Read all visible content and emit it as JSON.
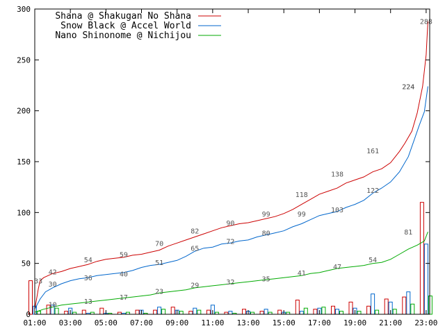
{
  "chart_data": {
    "type": "line",
    "title": "",
    "xlabel": "",
    "ylabel": "",
    "x_ticks": [
      "01:00",
      "03:00",
      "05:00",
      "07:00",
      "09:00",
      "11:00",
      "13:00",
      "15:00",
      "17:00",
      "19:00",
      "21:00",
      "23:00"
    ],
    "y_ticks": [
      0,
      50,
      100,
      150,
      200,
      250,
      300
    ],
    "xlim": [
      1,
      23.2
    ],
    "ylim": [
      0,
      300
    ],
    "grid": false,
    "legend_position": "top-left",
    "series": [
      {
        "name": "Shana @ Shakugan No Shana",
        "color": "#cc0000",
        "points": [
          [
            1.0,
            5
          ],
          [
            1.1,
            15
          ],
          [
            1.2,
            25
          ],
          [
            1.3,
            33
          ],
          [
            1.5,
            36
          ],
          [
            2.0,
            40
          ],
          [
            2.5,
            42
          ],
          [
            3.0,
            45
          ],
          [
            3.5,
            47
          ],
          [
            4.0,
            49
          ],
          [
            4.5,
            52
          ],
          [
            5.0,
            54
          ],
          [
            5.5,
            55
          ],
          [
            6.0,
            56
          ],
          [
            6.5,
            58
          ],
          [
            7.0,
            59
          ],
          [
            7.5,
            61
          ],
          [
            8.0,
            63
          ],
          [
            8.5,
            67
          ],
          [
            9.0,
            70
          ],
          [
            9.5,
            73
          ],
          [
            10.0,
            76
          ],
          [
            10.5,
            79
          ],
          [
            11.0,
            82
          ],
          [
            11.5,
            85
          ],
          [
            12.0,
            87
          ],
          [
            12.5,
            89
          ],
          [
            13.0,
            90
          ],
          [
            13.5,
            92
          ],
          [
            14.0,
            94
          ],
          [
            14.5,
            96
          ],
          [
            15.0,
            99
          ],
          [
            15.5,
            103
          ],
          [
            16.0,
            108
          ],
          [
            16.5,
            113
          ],
          [
            17.0,
            118
          ],
          [
            17.5,
            121
          ],
          [
            18.0,
            124
          ],
          [
            18.5,
            129
          ],
          [
            19.0,
            132
          ],
          [
            19.5,
            135
          ],
          [
            20.0,
            140
          ],
          [
            20.5,
            143
          ],
          [
            21.0,
            149
          ],
          [
            21.5,
            160
          ],
          [
            21.8,
            168
          ],
          [
            22.2,
            180
          ],
          [
            22.5,
            198
          ],
          [
            22.8,
            224
          ],
          [
            23.0,
            255
          ],
          [
            23.1,
            288
          ]
        ],
        "labels": [
          [
            1.2,
            33
          ],
          [
            2.0,
            42
          ],
          [
            4.0,
            54
          ],
          [
            6.0,
            59
          ],
          [
            8.0,
            70
          ],
          [
            10.0,
            82
          ],
          [
            12.0,
            90
          ],
          [
            14.0,
            99
          ],
          [
            16.0,
            118
          ],
          [
            18.0,
            138
          ],
          [
            20.0,
            161
          ],
          [
            22.0,
            224
          ],
          [
            23.0,
            288
          ]
        ]
      },
      {
        "name": "Snow Black @ Accel World",
        "color": "#0066cc",
        "points": [
          [
            1.0,
            5
          ],
          [
            1.3,
            15
          ],
          [
            1.6,
            22
          ],
          [
            2.0,
            26
          ],
          [
            2.5,
            30
          ],
          [
            3.0,
            33
          ],
          [
            3.5,
            35
          ],
          [
            4.0,
            36
          ],
          [
            4.5,
            38
          ],
          [
            5.0,
            39
          ],
          [
            5.5,
            40
          ],
          [
            6.0,
            41
          ],
          [
            6.5,
            43
          ],
          [
            7.0,
            46
          ],
          [
            7.5,
            48
          ],
          [
            8.0,
            49
          ],
          [
            8.5,
            51
          ],
          [
            9.0,
            53
          ],
          [
            9.5,
            57
          ],
          [
            10.0,
            62
          ],
          [
            10.5,
            65
          ],
          [
            11.0,
            66
          ],
          [
            11.5,
            69
          ],
          [
            12.0,
            70
          ],
          [
            12.5,
            72
          ],
          [
            13.0,
            73
          ],
          [
            13.5,
            76
          ],
          [
            14.0,
            78
          ],
          [
            14.5,
            80
          ],
          [
            15.0,
            82
          ],
          [
            15.5,
            86
          ],
          [
            16.0,
            89
          ],
          [
            16.5,
            93
          ],
          [
            17.0,
            97
          ],
          [
            17.5,
            99
          ],
          [
            18.0,
            101
          ],
          [
            18.5,
            105
          ],
          [
            19.0,
            108
          ],
          [
            19.5,
            112
          ],
          [
            20.0,
            119
          ],
          [
            20.5,
            124
          ],
          [
            21.0,
            130
          ],
          [
            21.5,
            140
          ],
          [
            22.0,
            155
          ],
          [
            22.3,
            170
          ],
          [
            22.6,
            185
          ],
          [
            22.9,
            199
          ],
          [
            23.1,
            224
          ]
        ],
        "labels": [
          [
            2.0,
            30
          ],
          [
            4.0,
            36
          ],
          [
            6.0,
            40
          ],
          [
            8.0,
            51
          ],
          [
            10.0,
            65
          ],
          [
            12.0,
            72
          ],
          [
            14.0,
            80
          ],
          [
            16.0,
            99
          ],
          [
            18.0,
            103
          ],
          [
            20.0,
            122
          ],
          [
            22.0,
            224
          ]
        ]
      },
      {
        "name": "Nano Shinonome @ Nichijou",
        "color": "#00aa00",
        "points": [
          [
            1.0,
            2
          ],
          [
            1.5,
            5
          ],
          [
            2.0,
            7
          ],
          [
            2.5,
            9
          ],
          [
            3.0,
            10
          ],
          [
            3.5,
            11
          ],
          [
            4.0,
            12
          ],
          [
            4.5,
            13
          ],
          [
            5.0,
            14
          ],
          [
            5.5,
            15
          ],
          [
            6.0,
            16
          ],
          [
            6.5,
            17
          ],
          [
            7.0,
            18
          ],
          [
            7.5,
            19
          ],
          [
            8.0,
            21
          ],
          [
            8.5,
            22
          ],
          [
            9.0,
            23
          ],
          [
            9.5,
            24
          ],
          [
            10.0,
            26
          ],
          [
            10.5,
            27
          ],
          [
            11.0,
            28
          ],
          [
            11.5,
            29
          ],
          [
            12.0,
            30
          ],
          [
            12.5,
            31
          ],
          [
            13.0,
            32
          ],
          [
            13.5,
            33
          ],
          [
            14.0,
            34
          ],
          [
            14.5,
            35
          ],
          [
            15.0,
            36
          ],
          [
            15.5,
            37
          ],
          [
            16.0,
            38
          ],
          [
            16.5,
            40
          ],
          [
            17.0,
            41
          ],
          [
            17.5,
            43
          ],
          [
            18.0,
            45
          ],
          [
            18.5,
            46
          ],
          [
            19.0,
            47
          ],
          [
            19.5,
            48
          ],
          [
            20.0,
            50
          ],
          [
            20.5,
            51
          ],
          [
            21.0,
            54
          ],
          [
            21.5,
            59
          ],
          [
            22.0,
            64
          ],
          [
            22.5,
            68
          ],
          [
            22.9,
            72
          ],
          [
            23.1,
            81
          ]
        ],
        "labels": [
          [
            2.0,
            10
          ],
          [
            4.0,
            13
          ],
          [
            6.0,
            17
          ],
          [
            8.0,
            23
          ],
          [
            10.0,
            29
          ],
          [
            12.0,
            32
          ],
          [
            14.0,
            35
          ],
          [
            16.0,
            41
          ],
          [
            18.0,
            47
          ],
          [
            20.0,
            54
          ],
          [
            22.0,
            81
          ]
        ]
      }
    ],
    "bars": [
      {
        "x": 1,
        "values": [
          33,
          8,
          3
        ]
      },
      {
        "x": 2,
        "values": [
          9,
          9,
          6
        ]
      },
      {
        "x": 3,
        "values": [
          3,
          6,
          2
        ]
      },
      {
        "x": 4,
        "values": [
          4,
          1,
          2
        ]
      },
      {
        "x": 5,
        "values": [
          6,
          1,
          1
        ]
      },
      {
        "x": 6,
        "values": [
          2,
          1,
          2
        ]
      },
      {
        "x": 7,
        "values": [
          4,
          4,
          1
        ]
      },
      {
        "x": 8,
        "values": [
          4,
          7,
          5
        ]
      },
      {
        "x": 9,
        "values": [
          7,
          4,
          3
        ]
      },
      {
        "x": 10,
        "values": [
          3,
          6,
          4
        ]
      },
      {
        "x": 11,
        "values": [
          4,
          9,
          2
        ]
      },
      {
        "x": 12,
        "values": [
          2,
          3,
          1
        ]
      },
      {
        "x": 13,
        "values": [
          5,
          3,
          2
        ]
      },
      {
        "x": 14,
        "values": [
          3,
          5,
          2
        ]
      },
      {
        "x": 15,
        "values": [
          4,
          2,
          2
        ]
      },
      {
        "x": 16,
        "values": [
          14,
          3,
          6
        ]
      },
      {
        "x": 17,
        "values": [
          5,
          6,
          7
        ]
      },
      {
        "x": 18,
        "values": [
          8,
          5,
          3
        ]
      },
      {
        "x": 19,
        "values": [
          12,
          6,
          3
        ]
      },
      {
        "x": 20,
        "values": [
          8,
          20,
          4
        ]
      },
      {
        "x": 21,
        "values": [
          15,
          12,
          5
        ]
      },
      {
        "x": 22,
        "values": [
          17,
          22,
          10
        ]
      },
      {
        "x": 23,
        "values": [
          110,
          69,
          18
        ]
      }
    ]
  }
}
